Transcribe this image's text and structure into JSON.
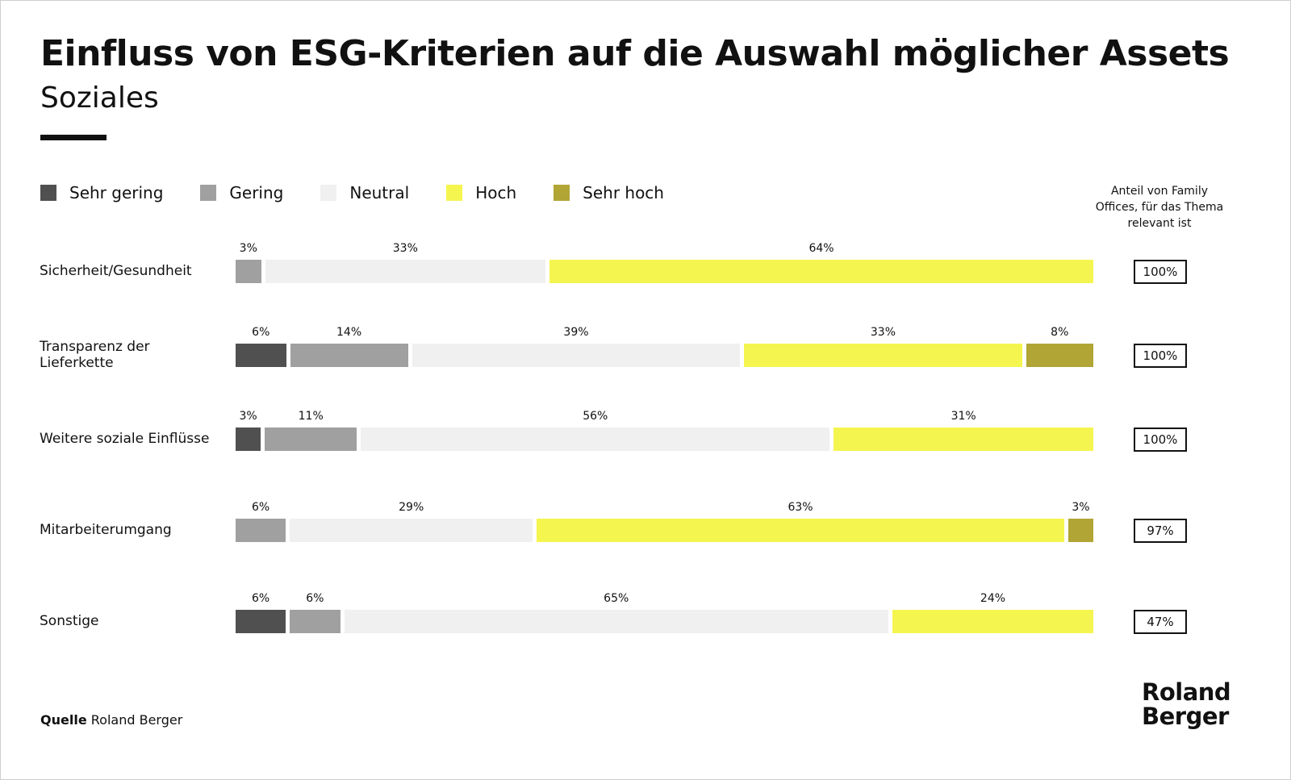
{
  "title": "Einfluss von ESG-Kriterien auf die Auswahl möglicher Assets",
  "subtitle": "Soziales",
  "right_header": "Anteil von Family Offices, für das Thema relevant ist",
  "source_label": "Quelle",
  "source_value": "Roland Berger",
  "logo_text": "Roland Berger",
  "chart_data": {
    "type": "bar",
    "orientation": "horizontal",
    "stacked": true,
    "legend_placement": "top-left",
    "categories": [
      "Sicherheit/Gesundheit",
      "Transparenz der Lieferkette",
      "Weitere soziale Einflüsse",
      "Mitarbeiterumgang",
      "Sonstige"
    ],
    "series": [
      {
        "name": "Sehr gering",
        "color": "#505050",
        "values": [
          0,
          6,
          3,
          0,
          6
        ]
      },
      {
        "name": "Gering",
        "color": "#a0a0a0",
        "values": [
          3,
          14,
          11,
          6,
          6
        ]
      },
      {
        "name": "Neutral",
        "color": "#f0f0f0",
        "values": [
          33,
          39,
          56,
          29,
          65
        ]
      },
      {
        "name": "Hoch",
        "color": "#f5f550",
        "values": [
          64,
          33,
          31,
          63,
          24
        ]
      },
      {
        "name": "Sehr hoch",
        "color": "#b0a535",
        "values": [
          0,
          8,
          0,
          3,
          0
        ]
      }
    ],
    "value_suffix": "%",
    "relevance": [
      "100%",
      "100%",
      "100%",
      "97%",
      "47%"
    ]
  }
}
